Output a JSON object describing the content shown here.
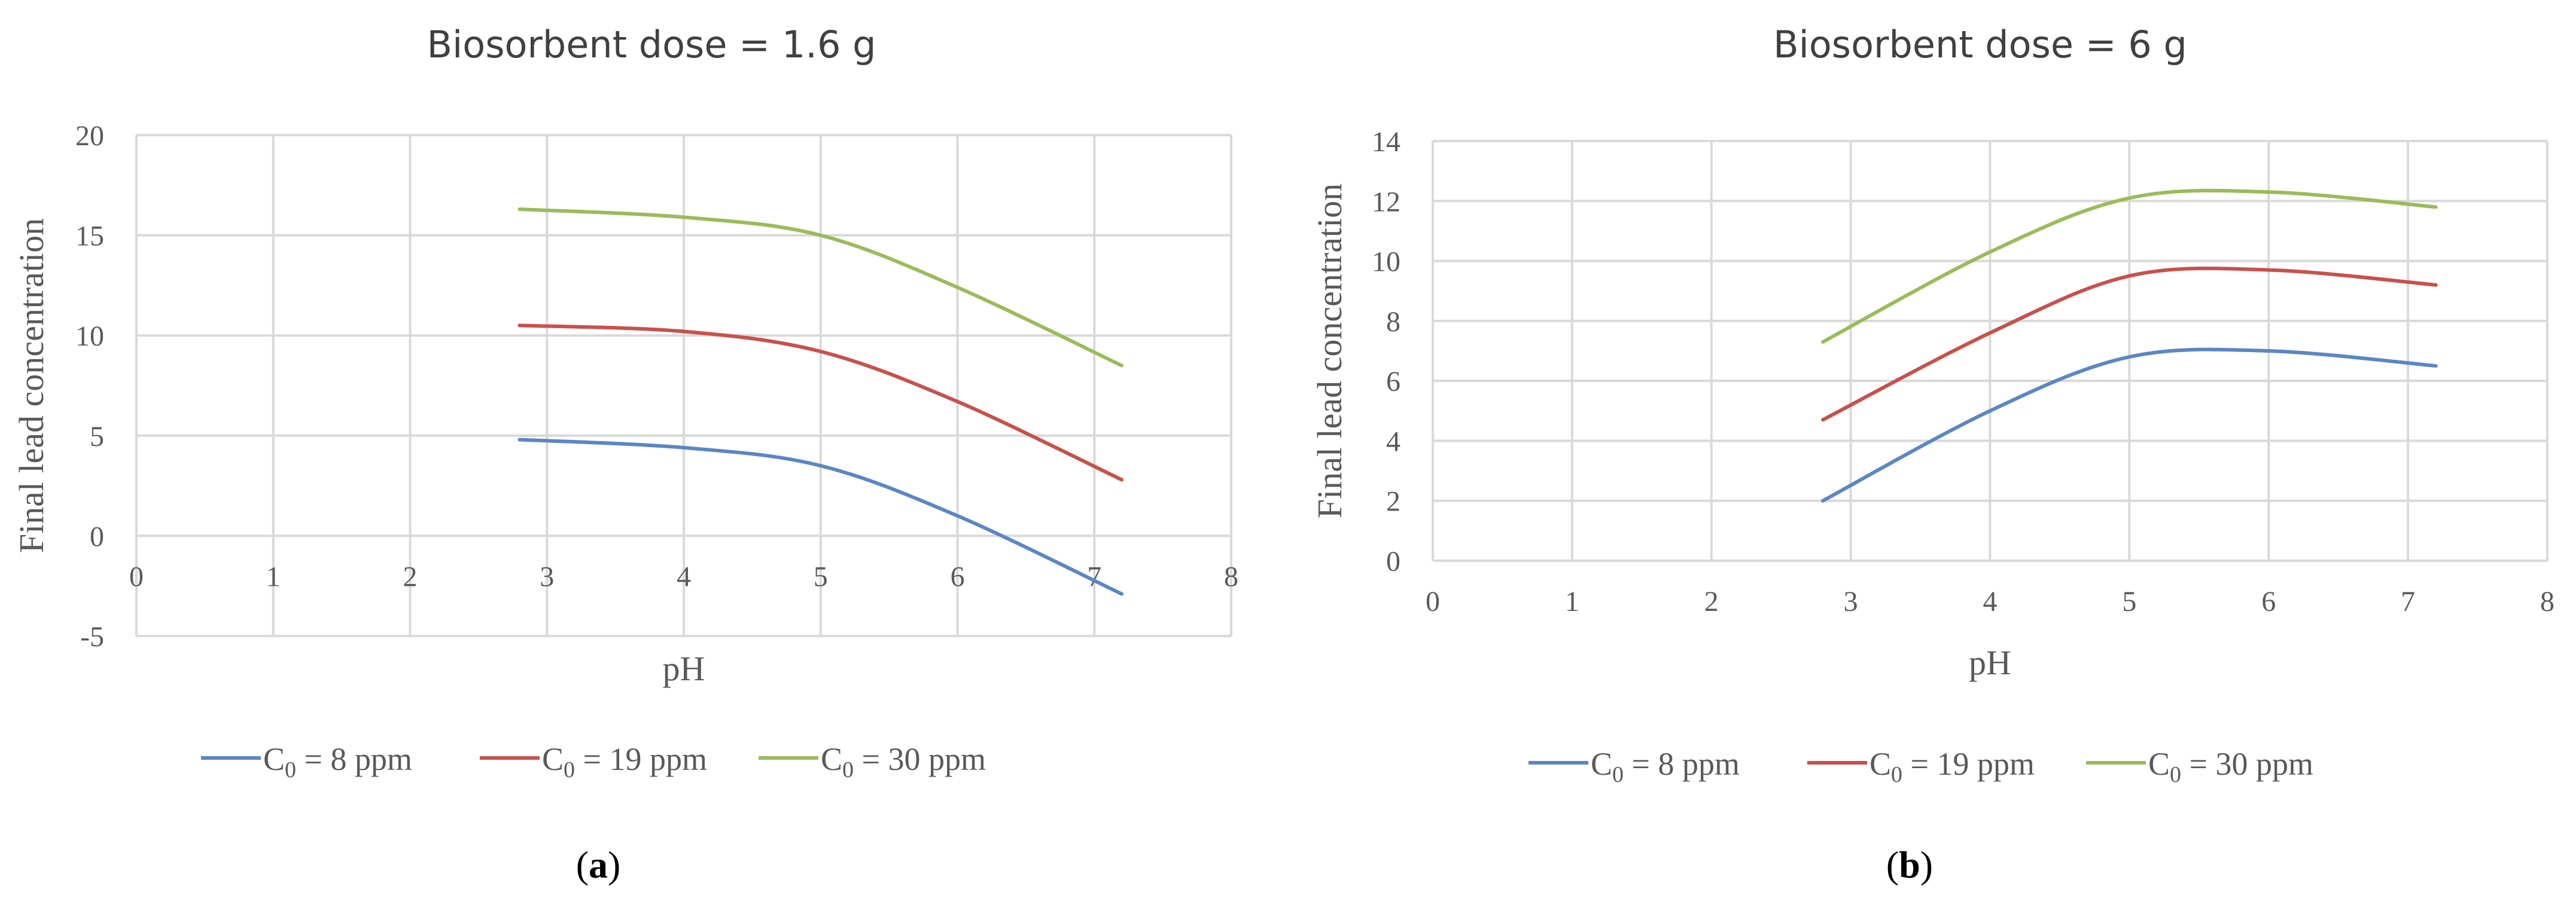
{
  "chart_data": [
    {
      "type": "line",
      "title": "Biosorbent dose = 1.6 g",
      "xlabel": "pH",
      "ylabel": "Final lead concentration",
      "xlim": [
        0,
        8
      ],
      "ylim": [
        -5,
        20
      ],
      "xticks": [
        "0",
        "1",
        "2",
        "3",
        "4",
        "5",
        "6",
        "7",
        "8"
      ],
      "yticks": [
        "-5",
        "0",
        "5",
        "10",
        "15",
        "20"
      ],
      "grid": true,
      "legend_position": "bottom",
      "panel_label": [
        "(",
        "a",
        ")"
      ],
      "series": [
        {
          "name_main": "C",
          "name_sub": "0",
          "name_rest": " = 8 ppm",
          "color": "#5b86c5",
          "x": [
            2.8,
            4,
            5,
            6,
            7.2
          ],
          "y": [
            4.8,
            4.4,
            3.5,
            1.0,
            -2.9
          ]
        },
        {
          "name_main": "C",
          "name_sub": "0",
          "name_rest": " = 19 ppm",
          "color": "#c9504c",
          "x": [
            2.8,
            4,
            5,
            6,
            7.2
          ],
          "y": [
            10.5,
            10.2,
            9.2,
            6.7,
            2.8
          ]
        },
        {
          "name_main": "C",
          "name_sub": "0",
          "name_rest": " = 30 ppm",
          "color": "#9bbb59",
          "x": [
            2.8,
            4,
            5,
            6,
            7.2
          ],
          "y": [
            16.3,
            15.9,
            15.0,
            12.4,
            8.5
          ]
        }
      ]
    },
    {
      "type": "line",
      "title": "Biosorbent dose = 6 g",
      "xlabel": "pH",
      "ylabel": "Final lead concentration",
      "xlim": [
        0,
        8
      ],
      "ylim": [
        0,
        14
      ],
      "xticks": [
        "0",
        "1",
        "2",
        "3",
        "4",
        "5",
        "6",
        "7",
        "8"
      ],
      "yticks": [
        "0",
        "2",
        "4",
        "6",
        "8",
        "10",
        "12",
        "14"
      ],
      "grid": true,
      "legend_position": "bottom",
      "panel_label": [
        "(",
        "b",
        ")"
      ],
      "series": [
        {
          "name_main": "C",
          "name_sub": "0",
          "name_rest": " = 8 ppm",
          "color": "#5b86c5",
          "x": [
            2.8,
            4,
            5,
            6,
            7.2
          ],
          "y": [
            2.0,
            5.0,
            6.8,
            7.0,
            6.5
          ]
        },
        {
          "name_main": "C",
          "name_sub": "0",
          "name_rest": " = 19 ppm",
          "color": "#c9504c",
          "x": [
            2.8,
            4,
            5,
            6,
            7.2
          ],
          "y": [
            4.7,
            7.6,
            9.5,
            9.7,
            9.2
          ]
        },
        {
          "name_main": "C",
          "name_sub": "0",
          "name_rest": " = 30 ppm",
          "color": "#9bbb59",
          "x": [
            2.8,
            4,
            5,
            6,
            7.2
          ],
          "y": [
            7.3,
            10.3,
            12.1,
            12.3,
            11.8
          ]
        }
      ]
    }
  ]
}
